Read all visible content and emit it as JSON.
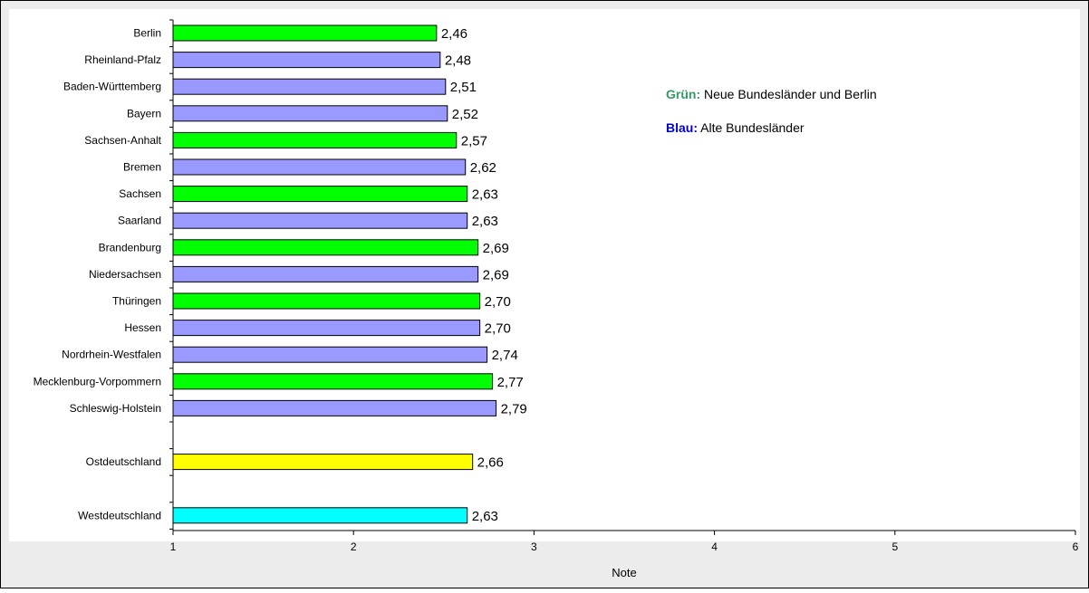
{
  "chart_data": {
    "type": "bar",
    "orientation": "horizontal",
    "categories": [
      "Berlin",
      "Rheinland-Pfalz",
      "Baden-Württemberg",
      "Bayern",
      "Sachsen-Anhalt",
      "Bremen",
      "Sachsen",
      "Saarland",
      "Brandenburg",
      "Niedersachsen",
      "Thüringen",
      "Hessen",
      "Nordrhein-Westfalen",
      "Mecklenburg-Vorpommern",
      "Schleswig-Holstein",
      "",
      "Ostdeutschland",
      "",
      "Westdeutschland"
    ],
    "values": [
      2.46,
      2.48,
      2.51,
      2.52,
      2.57,
      2.62,
      2.63,
      2.63,
      2.69,
      2.69,
      2.7,
      2.7,
      2.74,
      2.77,
      2.79,
      null,
      2.66,
      null,
      2.63
    ],
    "value_labels": [
      "2,46",
      "2,48",
      "2,51",
      "2,52",
      "2,57",
      "2,62",
      "2,63",
      "2,63",
      "2,69",
      "2,69",
      "2,70",
      "2,70",
      "2,74",
      "2,77",
      "2,79",
      "",
      "2,66",
      "",
      "2,63"
    ],
    "bar_colors": [
      "#00ff00",
      "#9999ff",
      "#9999ff",
      "#9999ff",
      "#00ff00",
      "#9999ff",
      "#00ff00",
      "#9999ff",
      "#00ff00",
      "#9999ff",
      "#00ff00",
      "#9999ff",
      "#9999ff",
      "#00ff00",
      "#9999ff",
      "",
      "#ffff00",
      "",
      "#00ffff"
    ],
    "xlabel": "Note",
    "ylabel": "",
    "xlim": [
      1,
      6
    ],
    "xticks": [
      1,
      2,
      3,
      4,
      5,
      6
    ],
    "grid": false,
    "legend_placement": "top-right",
    "legend": [
      {
        "key": "Grün:",
        "text": " Neue Bundesländer und Berlin",
        "color": "#339966"
      },
      {
        "key": "Blau:",
        "text": " Alte Bundesländer",
        "color": "#0000cc"
      }
    ]
  },
  "colors": {
    "frame_background": "#ececec",
    "plot_background": "#ffffff",
    "bar_outline": "#000000"
  }
}
